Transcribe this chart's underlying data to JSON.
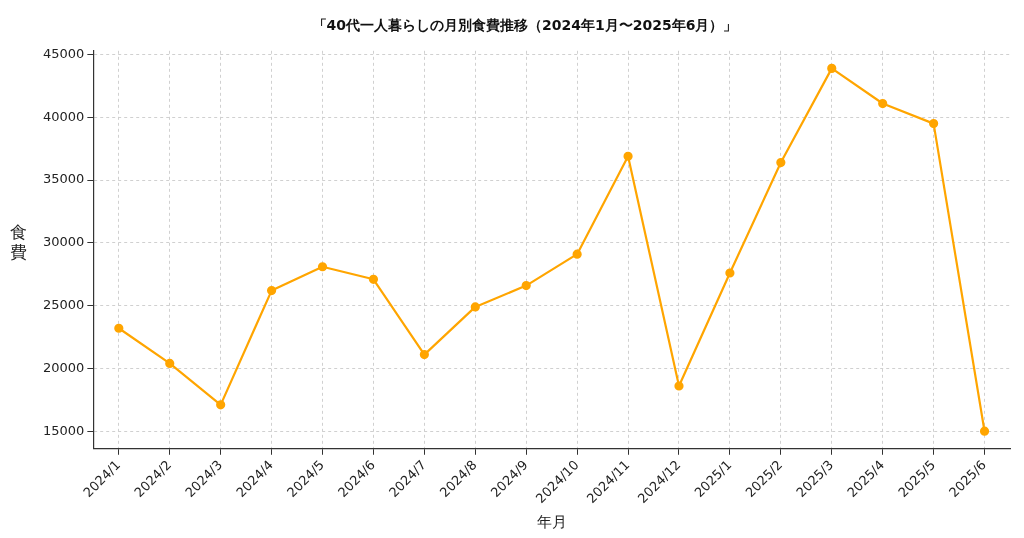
{
  "chart_data": {
    "type": "line",
    "title": "「40代一人暮らしの月別食費推移（2024年1月〜2025年6月）」",
    "xlabel": "年月",
    "ylabel": "食費",
    "categories": [
      "2024/1",
      "2024/2",
      "2024/3",
      "2024/4",
      "2024/5",
      "2024/6",
      "2024/7",
      "2024/8",
      "2024/9",
      "2024/10",
      "2024/11",
      "2024/12",
      "2025/1",
      "2025/2",
      "2025/3",
      "2025/4",
      "2025/5",
      "2025/6"
    ],
    "series": [
      {
        "color": "#ffa500",
        "values": [
          23200,
          20400,
          17100,
          26200,
          28100,
          27100,
          21100,
          24900,
          26600,
          29100,
          36900,
          18600,
          27600,
          36400,
          43900,
          41100,
          39500,
          15000
        ]
      }
    ],
    "ylim": [
      13600,
      45300
    ],
    "yticks": [
      15000,
      20000,
      25000,
      30000,
      35000,
      40000,
      45000
    ],
    "grid": true,
    "legend": false,
    "marker": "circle",
    "line_style": "solid"
  }
}
